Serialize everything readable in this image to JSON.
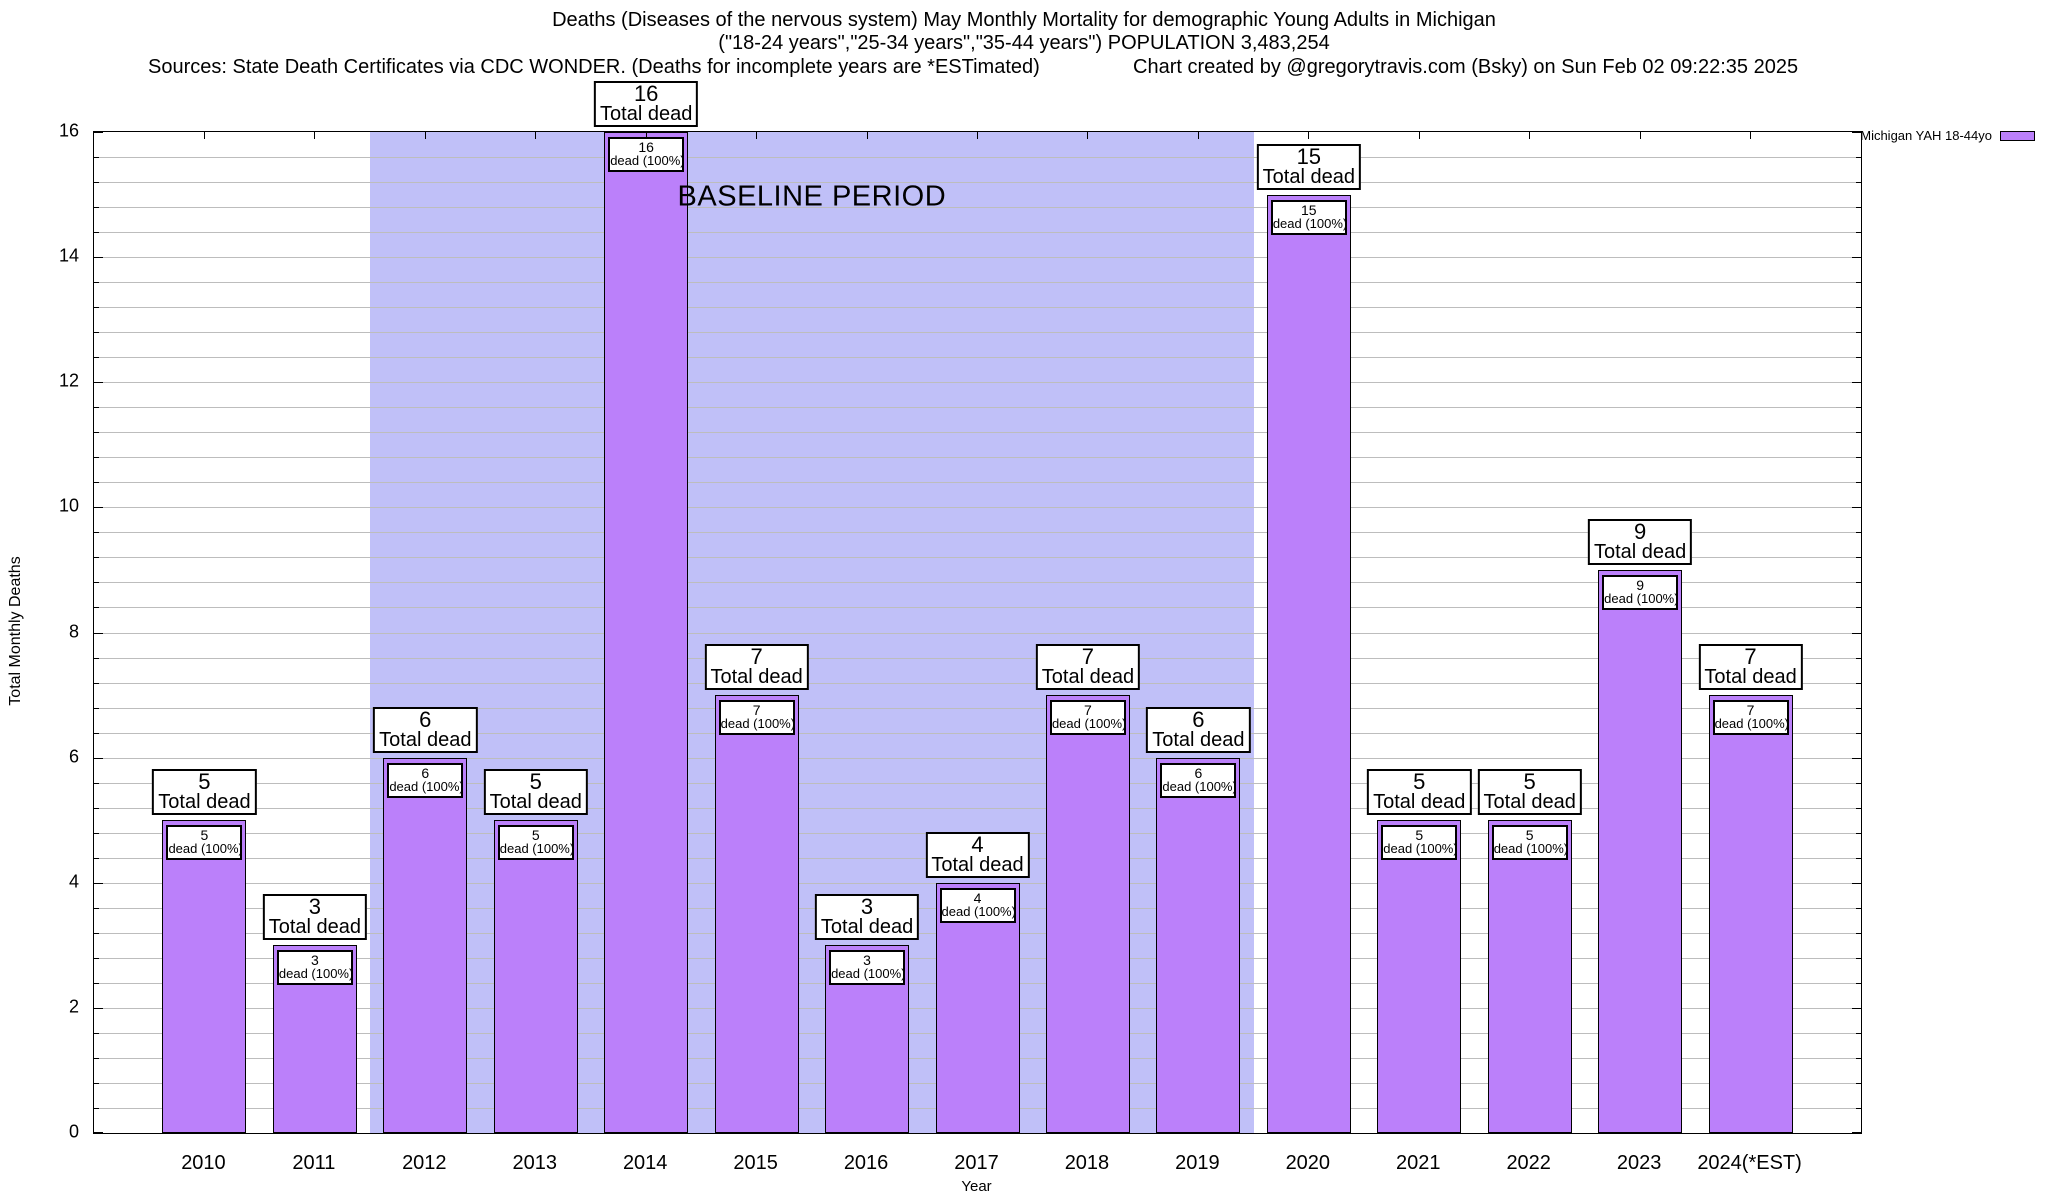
{
  "title": {
    "line1": "Deaths (Diseases of the nervous system) May Monthly Mortality for demographic Young Adults in Michigan",
    "line2": "(\"18-24 years\",\"25-34 years\",\"35-44 years\") POPULATION 3,483,254",
    "sources": "Sources: State Death Certificates via CDC WONDER. (Deaths for incomplete years are *ESTimated)",
    "credit": "Chart created by @gregorytravis.com (Bsky) on Sun Feb 02 09:22:35 2025"
  },
  "legend": {
    "label": "Michigan YAH 18-44yo"
  },
  "colors": {
    "bar_fill": "#bb80fa",
    "bar_border": "#000000",
    "baseline_band": "#c0c0f8",
    "grid": "#bdbdbd"
  },
  "chart_data": {
    "type": "bar",
    "title": "Deaths (Diseases of the nervous system) May Monthly Mortality for demographic Young Adults in Michigan (\"18-24 years\",\"25-34 years\",\"35-44 years\") POPULATION 3,483,254",
    "series_name": "Michigan YAH 18-44yo",
    "categories": [
      "2010",
      "2011",
      "2012",
      "2013",
      "2014",
      "2015",
      "2016",
      "2017",
      "2018",
      "2019",
      "2020",
      "2021",
      "2022",
      "2023",
      "2024(*EST)"
    ],
    "values": [
      5,
      3,
      6,
      5,
      16,
      7,
      3,
      4,
      7,
      6,
      15,
      5,
      5,
      9,
      7
    ],
    "bar_top_label_suffix": "Total dead",
    "bar_inner_label_suffix": "dead (100%)",
    "inner_label_pct": "100%",
    "xlabel": "Year",
    "ylabel": "Total Monthly Deaths",
    "ylim": [
      0,
      16
    ],
    "y_major_ticks": [
      0,
      2,
      4,
      6,
      8,
      10,
      12,
      14,
      16
    ],
    "y_minor_step": 0.4,
    "grid": true,
    "legend_position": "outside-top-right",
    "baseline_period": {
      "label": "BASELINE PERIOD",
      "start_year": "2012",
      "end_year": "2019"
    }
  }
}
